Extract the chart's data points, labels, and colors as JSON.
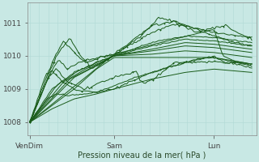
{
  "background_color": "#c8e8e4",
  "plot_bg_color": "#c8e8e4",
  "grid_color_v": "#b0d8d4",
  "grid_color_h": "#b0d8d4",
  "line_color": "#1a5c1a",
  "xlabel": "Pression niveau de la mer( hPa )",
  "ylim": [
    1007.6,
    1011.6
  ],
  "yticks": [
    1008,
    1009,
    1010,
    1011
  ],
  "xtick_labels": [
    "VenDim",
    "Sam",
    "Lun"
  ],
  "figsize": [
    3.2,
    2.0
  ],
  "dpi": 100
}
